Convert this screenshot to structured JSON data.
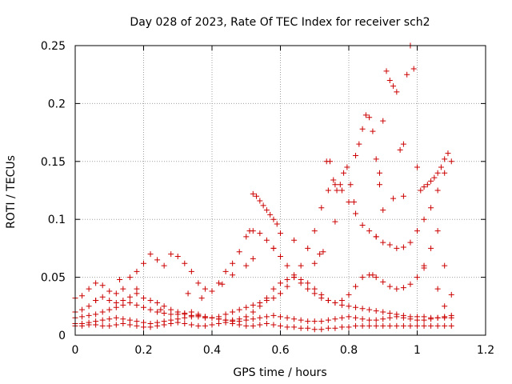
{
  "chart_data": {
    "type": "scatter",
    "title": "Day 028 of 2023, Rate Of TEC Index for receiver sch2",
    "xlabel": "GPS time / hours",
    "ylabel": "ROTI / TECUs",
    "xlim": [
      0,
      1.2
    ],
    "ylim": [
      0,
      0.25
    ],
    "xticks": [
      0,
      0.2,
      0.4,
      0.6,
      0.8,
      1,
      1.2
    ],
    "yticks": [
      0,
      0.05,
      0.1,
      0.15,
      0.2,
      0.25
    ],
    "xtick_labels": [
      "0",
      "0.2",
      "0.4",
      "0.6",
      "0.8",
      "1",
      "1.2"
    ],
    "ytick_labels": [
      "0",
      "0.05",
      "0.1",
      "0.15",
      "0.2",
      "0.25"
    ],
    "grid": true,
    "marker": "plus",
    "color": "#cc0000",
    "series": [
      {
        "x": [
          0.0,
          0.02,
          0.04,
          0.06,
          0.08,
          0.1,
          0.12,
          0.14,
          0.16,
          0.18,
          0.2,
          0.22,
          0.24,
          0.26,
          0.28,
          0.3,
          0.32,
          0.34,
          0.36,
          0.38,
          0.4,
          0.42,
          0.44,
          0.46,
          0.48,
          0.5,
          0.52,
          0.54,
          0.56,
          0.58,
          0.6,
          0.62,
          0.64,
          0.66,
          0.68,
          0.7,
          0.72,
          0.74,
          0.76,
          0.78,
          0.8,
          0.82,
          0.84,
          0.86,
          0.88,
          0.9,
          0.92,
          0.94,
          0.96,
          0.98,
          1.0,
          1.02,
          1.04,
          1.06,
          1.08,
          1.1
        ],
        "y": [
          0.032,
          0.034,
          0.04,
          0.045,
          0.043,
          0.038,
          0.036,
          0.04,
          0.05,
          0.055,
          0.062,
          0.07,
          0.065,
          0.06,
          0.07,
          0.068,
          0.062,
          0.055,
          0.045,
          0.04,
          0.038,
          0.045,
          0.055,
          0.062,
          0.072,
          0.085,
          0.09,
          0.088,
          0.082,
          0.075,
          0.068,
          0.06,
          0.052,
          0.045,
          0.04,
          0.036,
          0.032,
          0.03,
          0.028,
          0.026,
          0.025,
          0.024,
          0.023,
          0.022,
          0.021,
          0.02,
          0.019,
          0.018,
          0.017,
          0.016,
          0.016,
          0.016,
          0.015,
          0.015,
          0.015,
          0.015
        ]
      },
      {
        "x": [
          0.0,
          0.02,
          0.04,
          0.06,
          0.08,
          0.1,
          0.12,
          0.14,
          0.16,
          0.18,
          0.2,
          0.22,
          0.24,
          0.26,
          0.28,
          0.3,
          0.32,
          0.34,
          0.36,
          0.38,
          0.4,
          0.42,
          0.44,
          0.46,
          0.48,
          0.5,
          0.52,
          0.54,
          0.56,
          0.58,
          0.6,
          0.62,
          0.64,
          0.66,
          0.68,
          0.7,
          0.72,
          0.74,
          0.76,
          0.78,
          0.8,
          0.82,
          0.84,
          0.86,
          0.88,
          0.9,
          0.92,
          0.94,
          0.96,
          0.98,
          1.0,
          1.02,
          1.04,
          1.06,
          1.08,
          1.1
        ],
        "y": [
          0.02,
          0.022,
          0.025,
          0.03,
          0.033,
          0.03,
          0.028,
          0.03,
          0.033,
          0.036,
          0.032,
          0.03,
          0.028,
          0.025,
          0.022,
          0.02,
          0.018,
          0.017,
          0.016,
          0.015,
          0.015,
          0.016,
          0.018,
          0.02,
          0.022,
          0.024,
          0.026,
          0.028,
          0.03,
          0.032,
          0.036,
          0.042,
          0.05,
          0.06,
          0.075,
          0.09,
          0.11,
          0.125,
          0.13,
          0.125,
          0.115,
          0.105,
          0.095,
          0.09,
          0.085,
          0.08,
          0.078,
          0.075,
          0.076,
          0.08,
          0.09,
          0.1,
          0.11,
          0.125,
          0.14,
          0.15
        ]
      },
      {
        "x": [
          0.0,
          0.02,
          0.04,
          0.06,
          0.08,
          0.1,
          0.12,
          0.14,
          0.16,
          0.18,
          0.2,
          0.22,
          0.24,
          0.26,
          0.28,
          0.3,
          0.32,
          0.34,
          0.36,
          0.38,
          0.4,
          0.42,
          0.44,
          0.46,
          0.48,
          0.5,
          0.52,
          0.54,
          0.56,
          0.58,
          0.6,
          0.62,
          0.64,
          0.66,
          0.68,
          0.7,
          0.72,
          0.74,
          0.76,
          0.78,
          0.8,
          0.82,
          0.84,
          0.86,
          0.88,
          0.9,
          0.92,
          0.94,
          0.96,
          0.98,
          1.0,
          1.02,
          1.04,
          1.06,
          1.08,
          1.1
        ],
        "y": [
          0.015,
          0.016,
          0.017,
          0.018,
          0.02,
          0.022,
          0.024,
          0.026,
          0.028,
          0.026,
          0.024,
          0.022,
          0.02,
          0.019,
          0.018,
          0.018,
          0.019,
          0.02,
          0.018,
          0.016,
          0.015,
          0.014,
          0.013,
          0.013,
          0.014,
          0.016,
          0.02,
          0.025,
          0.032,
          0.04,
          0.045,
          0.048,
          0.05,
          0.048,
          0.045,
          0.04,
          0.035,
          0.03,
          0.028,
          0.03,
          0.035,
          0.042,
          0.05,
          0.052,
          0.05,
          0.046,
          0.042,
          0.04,
          0.041,
          0.044,
          0.05,
          0.06,
          0.075,
          0.09,
          0.06,
          0.035
        ]
      },
      {
        "x": [
          0.0,
          0.02,
          0.04,
          0.06,
          0.08,
          0.1,
          0.12,
          0.14,
          0.16,
          0.18,
          0.2,
          0.22,
          0.24,
          0.26,
          0.28,
          0.3,
          0.32,
          0.34,
          0.36,
          0.38,
          0.4,
          0.42,
          0.44,
          0.46,
          0.48,
          0.5,
          0.52,
          0.54,
          0.56,
          0.58,
          0.6,
          0.62,
          0.64,
          0.66,
          0.68,
          0.7,
          0.72,
          0.74,
          0.76,
          0.78,
          0.8,
          0.82,
          0.84,
          0.86,
          0.88,
          0.9,
          0.92,
          0.94,
          0.96,
          0.98,
          1.0,
          1.02,
          1.04,
          1.06,
          1.08,
          1.1
        ],
        "y": [
          0.01,
          0.01,
          0.011,
          0.012,
          0.013,
          0.014,
          0.015,
          0.014,
          0.013,
          0.012,
          0.011,
          0.01,
          0.011,
          0.012,
          0.013,
          0.014,
          0.015,
          0.016,
          0.017,
          0.016,
          0.015,
          0.014,
          0.013,
          0.012,
          0.012,
          0.013,
          0.014,
          0.015,
          0.016,
          0.017,
          0.016,
          0.015,
          0.014,
          0.013,
          0.012,
          0.012,
          0.012,
          0.013,
          0.014,
          0.015,
          0.016,
          0.015,
          0.014,
          0.013,
          0.013,
          0.014,
          0.015,
          0.016,
          0.015,
          0.014,
          0.013,
          0.013,
          0.014,
          0.015,
          0.016,
          0.017
        ]
      },
      {
        "x": [
          0.0,
          0.02,
          0.04,
          0.06,
          0.08,
          0.1,
          0.12,
          0.14,
          0.16,
          0.18,
          0.2,
          0.22,
          0.24,
          0.26,
          0.28,
          0.3,
          0.32,
          0.34,
          0.36,
          0.38,
          0.4,
          0.42,
          0.44,
          0.46,
          0.48,
          0.5,
          0.52,
          0.54,
          0.56,
          0.58,
          0.6,
          0.62,
          0.64,
          0.66,
          0.68,
          0.7,
          0.72,
          0.74,
          0.76,
          0.78,
          0.8,
          0.82,
          0.84,
          0.86,
          0.88,
          0.9,
          0.92,
          0.94,
          0.96,
          0.98,
          1.0,
          1.02,
          1.04,
          1.06,
          1.08,
          1.1
        ],
        "y": [
          0.008,
          0.008,
          0.009,
          0.009,
          0.008,
          0.008,
          0.009,
          0.01,
          0.009,
          0.008,
          0.007,
          0.007,
          0.008,
          0.009,
          0.01,
          0.011,
          0.01,
          0.009,
          0.008,
          0.008,
          0.009,
          0.01,
          0.011,
          0.01,
          0.009,
          0.008,
          0.008,
          0.009,
          0.01,
          0.009,
          0.008,
          0.007,
          0.007,
          0.006,
          0.006,
          0.005,
          0.005,
          0.006,
          0.006,
          0.007,
          0.007,
          0.008,
          0.008,
          0.008,
          0.008,
          0.008,
          0.008,
          0.008,
          0.008,
          0.008,
          0.008,
          0.008,
          0.008,
          0.008,
          0.008,
          0.008
        ]
      },
      {
        "x": [
          0.88,
          0.89,
          0.9,
          0.91,
          0.92,
          0.93,
          0.94,
          0.95,
          0.96,
          0.97,
          0.98,
          0.99,
          1.0,
          1.01,
          1.02,
          1.03,
          1.04,
          1.05,
          1.06,
          1.07,
          1.08,
          1.09
        ],
        "y": [
          0.085,
          0.14,
          0.185,
          0.228,
          0.22,
          0.215,
          0.21,
          0.16,
          0.12,
          0.225,
          0.25,
          0.23,
          0.145,
          0.125,
          0.128,
          0.13,
          0.133,
          0.136,
          0.14,
          0.145,
          0.152,
          0.157
        ]
      },
      {
        "x": [
          0.82,
          0.83,
          0.84,
          0.85,
          0.86,
          0.87,
          0.88,
          0.89,
          0.9
        ],
        "y": [
          0.155,
          0.165,
          0.178,
          0.19,
          0.188,
          0.176,
          0.152,
          0.13,
          0.108
        ]
      },
      {
        "x": [
          0.715,
          0.725,
          0.735,
          0.745,
          0.755,
          0.765,
          0.775,
          0.785,
          0.795,
          0.805,
          0.815
        ],
        "y": [
          0.07,
          0.072,
          0.15,
          0.15,
          0.134,
          0.125,
          0.13,
          0.14,
          0.145,
          0.13,
          0.115
        ]
      },
      {
        "x": [
          0.5,
          0.51,
          0.52,
          0.53,
          0.54,
          0.55,
          0.56,
          0.57,
          0.58,
          0.59,
          0.6
        ],
        "y": [
          0.06,
          0.09,
          0.122,
          0.12,
          0.116,
          0.112,
          0.108,
          0.104,
          0.1,
          0.096,
          0.088
        ]
      },
      {
        "x": [
          0.06,
          0.13,
          0.18,
          0.25,
          0.33,
          0.37,
          0.43,
          0.46,
          0.52,
          0.58,
          0.64,
          0.7,
          0.76,
          0.87,
          0.93,
          0.96,
          1.02,
          1.06,
          1.08
        ],
        "y": [
          0.03,
          0.048,
          0.04,
          0.022,
          0.036,
          0.032,
          0.044,
          0.052,
          0.066,
          0.075,
          0.082,
          0.062,
          0.098,
          0.052,
          0.118,
          0.165,
          0.058,
          0.04,
          0.025
        ]
      }
    ]
  }
}
